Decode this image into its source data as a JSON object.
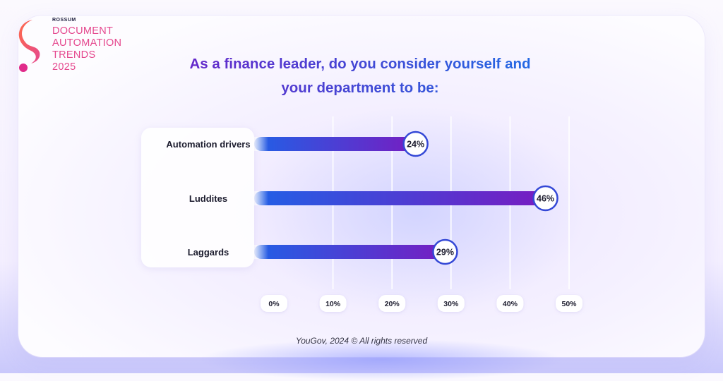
{
  "brand": {
    "name": "ROSSUM",
    "title_lines": [
      "DOCUMENT",
      "AUTOMATION",
      "TRENDS",
      "2025"
    ]
  },
  "question": {
    "line1": "As a finance leader, do you consider yourself and",
    "line2": "your department to be:"
  },
  "source": "YouGov, 2024 © All rights reserved",
  "colors": {
    "bar_start": "#2160e6",
    "bar_end": "#7a1ac0",
    "accent_pink": "#e5488e",
    "marker_border": "#3448d6"
  },
  "chart_data": {
    "type": "bar",
    "orientation": "horizontal",
    "title": "As a finance leader, do you consider yourself and your department to be:",
    "categories": [
      "Automation drivers",
      "Luddites",
      "Laggards"
    ],
    "values": [
      24,
      46,
      29
    ],
    "value_labels": [
      "24%",
      "46%",
      "29%"
    ],
    "xlim": [
      0,
      50
    ],
    "ticks": [
      0,
      10,
      20,
      30,
      40,
      50
    ],
    "tick_labels": [
      "0%",
      "10%",
      "20%",
      "30%",
      "40%",
      "50%"
    ],
    "grid": true,
    "legend": "none"
  }
}
